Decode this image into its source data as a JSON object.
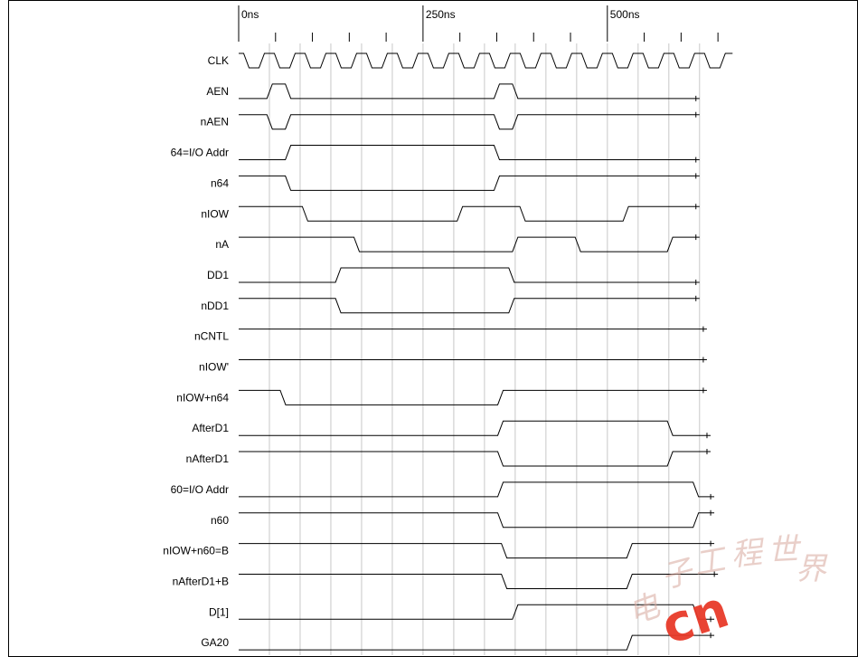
{
  "time_axis": {
    "unit": "ns",
    "major_labels": [
      "0ns",
      "250ns",
      "500ns"
    ],
    "major_values": [
      0,
      250,
      500
    ],
    "minor_step": 50,
    "gridline_step": 41.67,
    "range": [
      0,
      650
    ]
  },
  "clock": {
    "name": "CLK",
    "period_ns": 41.67
  },
  "signals": [
    {
      "name": "CLK",
      "type": "clock"
    },
    {
      "name": "AEN",
      "type": "bit",
      "init": 0,
      "transitions": [
        [
          42,
          1
        ],
        [
          67,
          0
        ],
        [
          350,
          1
        ],
        [
          375,
          0
        ]
      ],
      "end_ns": 625
    },
    {
      "name": "nAEN",
      "type": "bit",
      "init": 1,
      "transitions": [
        [
          42,
          0
        ],
        [
          67,
          1
        ],
        [
          350,
          0
        ],
        [
          375,
          1
        ]
      ],
      "end_ns": 625
    },
    {
      "name": "64=I/O Addr",
      "type": "bit",
      "init": 0,
      "transitions": [
        [
          67,
          1
        ],
        [
          350,
          0
        ]
      ],
      "end_ns": 625
    },
    {
      "name": "n64",
      "type": "bit",
      "init": 1,
      "transitions": [
        [
          67,
          0
        ],
        [
          350,
          1
        ]
      ],
      "end_ns": 625
    },
    {
      "name": "nIOW",
      "type": "bit",
      "init": 1,
      "transitions": [
        [
          90,
          0
        ],
        [
          300,
          1
        ],
        [
          385,
          0
        ],
        [
          525,
          1
        ]
      ],
      "end_ns": 625
    },
    {
      "name": "nA",
      "type": "bit",
      "init": 1,
      "transitions": [
        [
          160,
          0
        ],
        [
          375,
          1
        ],
        [
          460,
          0
        ],
        [
          585,
          1
        ]
      ],
      "end_ns": 625
    },
    {
      "name": "DD1",
      "type": "bit",
      "init": 0,
      "transitions": [
        [
          135,
          1
        ],
        [
          370,
          0
        ]
      ],
      "end_ns": 625
    },
    {
      "name": "nDD1",
      "type": "bit",
      "init": 1,
      "transitions": [
        [
          135,
          0
        ],
        [
          370,
          1
        ]
      ],
      "end_ns": 625
    },
    {
      "name": "nCNTL",
      "type": "bit",
      "init": 1,
      "transitions": [],
      "end_ns": 635
    },
    {
      "name": "nIOW'",
      "type": "bit",
      "init": 1,
      "transitions": [],
      "end_ns": 635
    },
    {
      "name": "nIOW+n64",
      "type": "bit",
      "init": 1,
      "transitions": [
        [
          60,
          0
        ],
        [
          355,
          1
        ]
      ],
      "end_ns": 635
    },
    {
      "name": "AfterD1",
      "type": "bit",
      "init": 0,
      "transitions": [
        [
          355,
          1
        ],
        [
          585,
          0
        ]
      ],
      "end_ns": 640
    },
    {
      "name": "nAfterD1",
      "type": "bit",
      "init": 1,
      "transitions": [
        [
          355,
          0
        ],
        [
          585,
          1
        ]
      ],
      "end_ns": 640
    },
    {
      "name": "60=I/O Addr",
      "type": "bit",
      "init": 0,
      "transitions": [
        [
          355,
          1
        ],
        [
          620,
          0
        ]
      ],
      "end_ns": 645
    },
    {
      "name": "n60",
      "type": "bit",
      "init": 1,
      "transitions": [
        [
          355,
          0
        ],
        [
          620,
          1
        ]
      ],
      "end_ns": 645
    },
    {
      "name": "nIOW+n60=B",
      "type": "bit",
      "init": 1,
      "transitions": [
        [
          360,
          0
        ],
        [
          530,
          1
        ]
      ],
      "end_ns": 645
    },
    {
      "name": "nAfterD1+B",
      "type": "bit",
      "init": 1,
      "transitions": [
        [
          360,
          0
        ],
        [
          530,
          1
        ]
      ],
      "end_ns": 650
    },
    {
      "name": "D[1]",
      "type": "bit",
      "init": 0,
      "transitions": [
        [
          375,
          1
        ],
        [
          620,
          0
        ]
      ],
      "end_ns": 645
    },
    {
      "name": "GA20",
      "type": "bit",
      "init": 0,
      "transitions": [
        [
          530,
          1
        ]
      ],
      "end_ns": 645
    }
  ],
  "watermark": {
    "text": "电子工程世界",
    "suffix": "cn",
    "color": "#e83a2a"
  }
}
